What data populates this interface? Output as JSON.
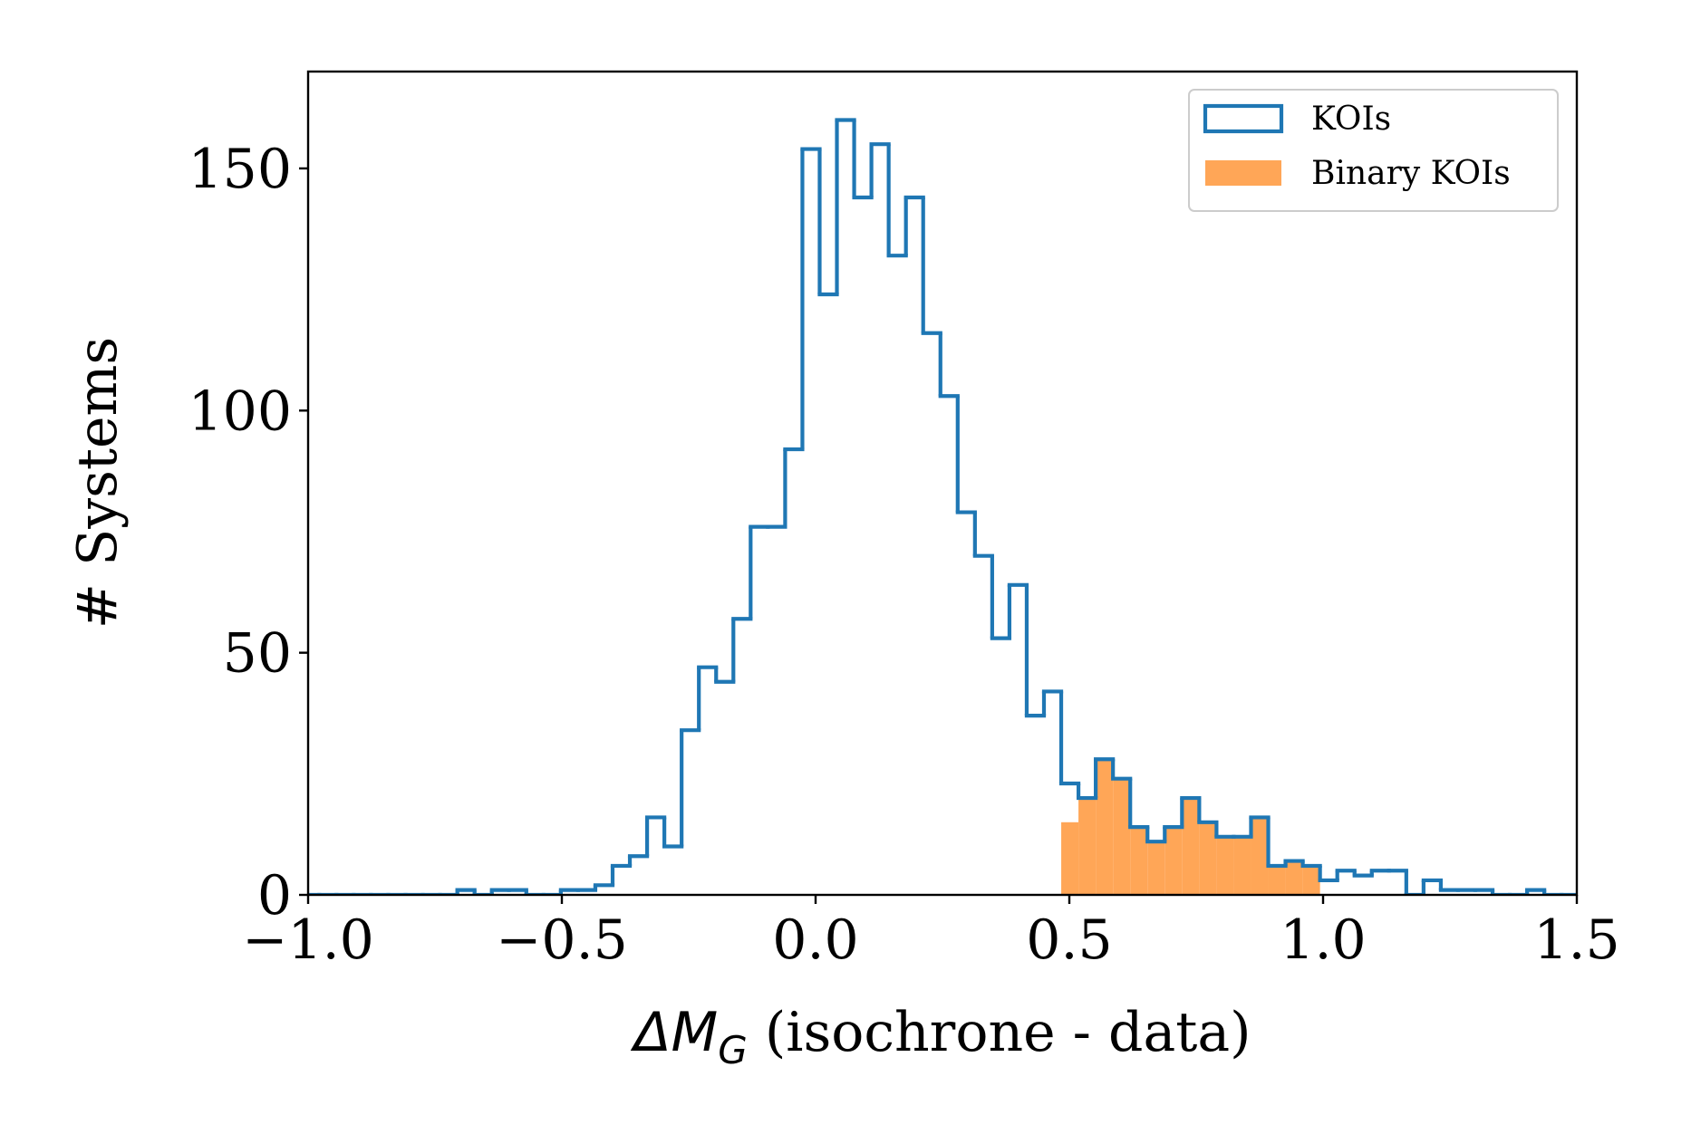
{
  "chart_data": {
    "type": "histogram",
    "xlabel": {
      "symbol": "ΔM",
      "subscript": "G",
      "text": " (isochrone - data)"
    },
    "ylabel": "# Systems",
    "bins": [
      -1.012,
      -0.978,
      -0.944,
      -0.91,
      -0.876,
      -0.842,
      -0.808,
      -0.774,
      -0.74,
      -0.706,
      -0.672,
      -0.638,
      -0.604,
      -0.57,
      -0.536,
      -0.502,
      -0.468,
      -0.434,
      -0.4,
      -0.366,
      -0.332,
      -0.298,
      -0.264,
      -0.23,
      -0.196,
      -0.162,
      -0.128,
      -0.094,
      -0.06,
      -0.026,
      0.008,
      0.042,
      0.076,
      0.11,
      0.144,
      0.178,
      0.212,
      0.246,
      0.28,
      0.314,
      0.348,
      0.382,
      0.416,
      0.45,
      0.484,
      0.518,
      0.552,
      0.586,
      0.62,
      0.654,
      0.688,
      0.722,
      0.756,
      0.79,
      0.824,
      0.858,
      0.892,
      0.926,
      0.96,
      0.994,
      1.028,
      1.062,
      1.096,
      1.13,
      1.164,
      1.198,
      1.232,
      1.266,
      1.3,
      1.334,
      1.368,
      1.402,
      1.436,
      1.47,
      1.504
    ],
    "series": [
      {
        "name": "KOIs",
        "color": "#1f77b4",
        "style": "step",
        "values": [
          0,
          0,
          0,
          0,
          0,
          0,
          0,
          0,
          0,
          1,
          0,
          1,
          1,
          0,
          0,
          1,
          1,
          2,
          6,
          8,
          16,
          10,
          34,
          47,
          44,
          57,
          76,
          76,
          92,
          154,
          124,
          160,
          144,
          155,
          132,
          144,
          116,
          103,
          79,
          70,
          53,
          64,
          37,
          42,
          23,
          20,
          28,
          24,
          14,
          11,
          14,
          20,
          15,
          12,
          12,
          16,
          6,
          7,
          6,
          3,
          5,
          4,
          5,
          5,
          0,
          3,
          1,
          1,
          1,
          0,
          0,
          1,
          0,
          0
        ]
      },
      {
        "name": "Binary KOIs",
        "color": "#ffa657",
        "style": "filled",
        "values": [
          0,
          0,
          0,
          0,
          0,
          0,
          0,
          0,
          0,
          0,
          0,
          0,
          0,
          0,
          0,
          0,
          0,
          0,
          0,
          0,
          0,
          0,
          0,
          0,
          0,
          0,
          0,
          0,
          0,
          0,
          0,
          0,
          0,
          0,
          0,
          0,
          0,
          0,
          0,
          0,
          0,
          0,
          0,
          0,
          15,
          20,
          28,
          24,
          14,
          11,
          14,
          20,
          15,
          12,
          12,
          16,
          6,
          7,
          6,
          0,
          0,
          0,
          0,
          0,
          0,
          0,
          0,
          0,
          0,
          0,
          0,
          0,
          0,
          0
        ]
      }
    ],
    "xlim": [
      -1,
      1.5
    ],
    "ylim": [
      0,
      170
    ],
    "xticks": [
      {
        "value": -1,
        "label": "−1.0"
      },
      {
        "value": -0.5,
        "label": "−0.5"
      },
      {
        "value": 0,
        "label": "0.0"
      },
      0.5,
      {
        "value": 1,
        "label": "1.0"
      },
      1.5
    ],
    "yticks": [
      0,
      50,
      100,
      150
    ],
    "legend": "upper right"
  }
}
